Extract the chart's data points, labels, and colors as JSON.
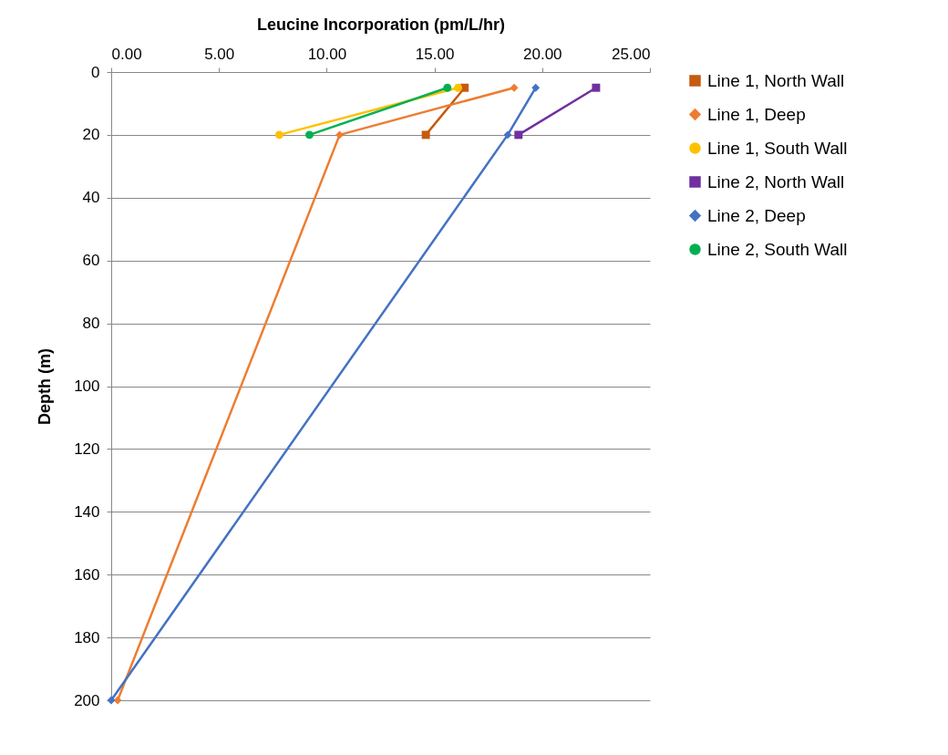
{
  "chart_data": {
    "type": "line",
    "xlabel": "Leucine Incorporation (pm/L/hr)",
    "ylabel": "Depth (m)",
    "xlim": [
      0,
      25
    ],
    "xticks": [
      {
        "value": 0,
        "label": "0.00"
      },
      {
        "value": 5,
        "label": "5.00"
      },
      {
        "value": 10,
        "label": "10.00"
      },
      {
        "value": 15,
        "label": "15.00"
      },
      {
        "value": 20,
        "label": "20.00"
      },
      {
        "value": 25,
        "label": "25.00"
      }
    ],
    "ylim": [
      200,
      0
    ],
    "yticks": [
      0,
      20,
      40,
      60,
      80,
      100,
      120,
      140,
      160,
      180,
      200
    ],
    "grid": "y",
    "legend": "right",
    "series": [
      {
        "name": "Line 1, North Wall",
        "color": "#c55a11",
        "marker": "square",
        "x": [
          16.4,
          14.6
        ],
        "values": [
          5,
          20
        ]
      },
      {
        "name": "Line 1, Deep",
        "color": "#ed7d31",
        "marker": "diamond",
        "x": [
          18.7,
          10.6,
          0.3
        ],
        "values": [
          5,
          20,
          200
        ]
      },
      {
        "name": "Line 1, South Wall",
        "color": "#ffc000",
        "marker": "circle",
        "x": [
          16.1,
          7.8
        ],
        "values": [
          5,
          20
        ]
      },
      {
        "name": "Line 2, North Wall",
        "color": "#7030a0",
        "marker": "square",
        "x": [
          22.5,
          18.9
        ],
        "values": [
          5,
          20
        ]
      },
      {
        "name": "Line 2, Deep",
        "color": "#4472c4",
        "marker": "diamond",
        "x": [
          19.7,
          18.4,
          0.0
        ],
        "values": [
          5,
          20,
          200
        ]
      },
      {
        "name": "Line 2, South Wall",
        "color": "#00b050",
        "marker": "circle",
        "x": [
          15.6,
          9.2
        ],
        "values": [
          5,
          20
        ]
      }
    ]
  }
}
